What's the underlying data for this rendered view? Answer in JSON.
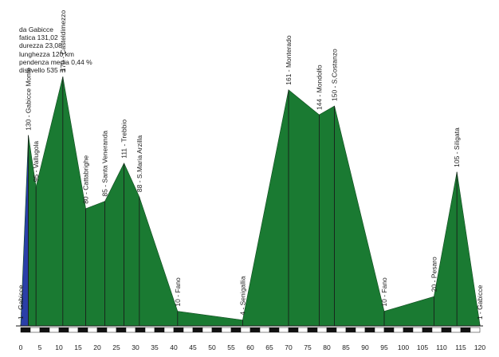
{
  "stats": [
    "da Gabicce",
    "fatica 131,02",
    "durezza 23,08",
    "lunghezza 120 km",
    "pendenza media 0,44 %",
    "dislivello 535 m"
  ],
  "chart_data": {
    "type": "area",
    "title": "",
    "xlabel": "",
    "ylabel": "",
    "xlim": [
      0,
      120
    ],
    "ylim": [
      0,
      200
    ],
    "xticks": [
      "0",
      "5",
      "10",
      "15",
      "20",
      "25",
      "30",
      "35",
      "40",
      "45",
      "50",
      "55",
      "60",
      "65",
      "70",
      "75",
      "80",
      "85",
      "90",
      "95",
      "100",
      "105",
      "110",
      "115",
      "120"
    ],
    "fill_color": "#1a7a32",
    "first_segment_color": "#2a3fa8",
    "profile": [
      {
        "x": 0,
        "y": 1
      },
      {
        "x": 2,
        "y": 130
      },
      {
        "x": 4,
        "y": 95
      },
      {
        "x": 11,
        "y": 170
      },
      {
        "x": 17,
        "y": 80
      },
      {
        "x": 22,
        "y": 85
      },
      {
        "x": 27,
        "y": 111
      },
      {
        "x": 31,
        "y": 88
      },
      {
        "x": 41,
        "y": 10
      },
      {
        "x": 58,
        "y": 4
      },
      {
        "x": 70,
        "y": 161
      },
      {
        "x": 78,
        "y": 144
      },
      {
        "x": 82,
        "y": 150
      },
      {
        "x": 95,
        "y": 10
      },
      {
        "x": 108,
        "y": 20
      },
      {
        "x": 114,
        "y": 105
      },
      {
        "x": 120,
        "y": 1
      }
    ],
    "waypoints": [
      {
        "x": 0,
        "y": 1,
        "label": "1 - Gabicce"
      },
      {
        "x": 2,
        "y": 130,
        "label": "130 - Gabicce Monte"
      },
      {
        "x": 4,
        "y": 95,
        "label": "95 - Vallugola"
      },
      {
        "x": 11,
        "y": 170,
        "label": "170 - Casteldimezzo"
      },
      {
        "x": 17,
        "y": 80,
        "label": "80 - Cattabrighe"
      },
      {
        "x": 22,
        "y": 85,
        "label": "85 - Santa Veneranda"
      },
      {
        "x": 27,
        "y": 111,
        "label": "111 - Trebbio"
      },
      {
        "x": 31,
        "y": 88,
        "label": "88 - S.Maria Arzilla"
      },
      {
        "x": 41,
        "y": 10,
        "label": "10 - Fano"
      },
      {
        "x": 58,
        "y": 4,
        "label": "4 - Senigallia"
      },
      {
        "x": 70,
        "y": 161,
        "label": "161 - Monterado"
      },
      {
        "x": 78,
        "y": 144,
        "label": "144 - Mondolfo"
      },
      {
        "x": 82,
        "y": 150,
        "label": "150 - S.Costanzo"
      },
      {
        "x": 95,
        "y": 10,
        "label": "10 - Fano"
      },
      {
        "x": 108,
        "y": 20,
        "label": "20 - Pesaro"
      },
      {
        "x": 114,
        "y": 105,
        "label": "105 - Siligata"
      },
      {
        "x": 120,
        "y": 1,
        "label": "1 - Gabicce"
      }
    ]
  }
}
